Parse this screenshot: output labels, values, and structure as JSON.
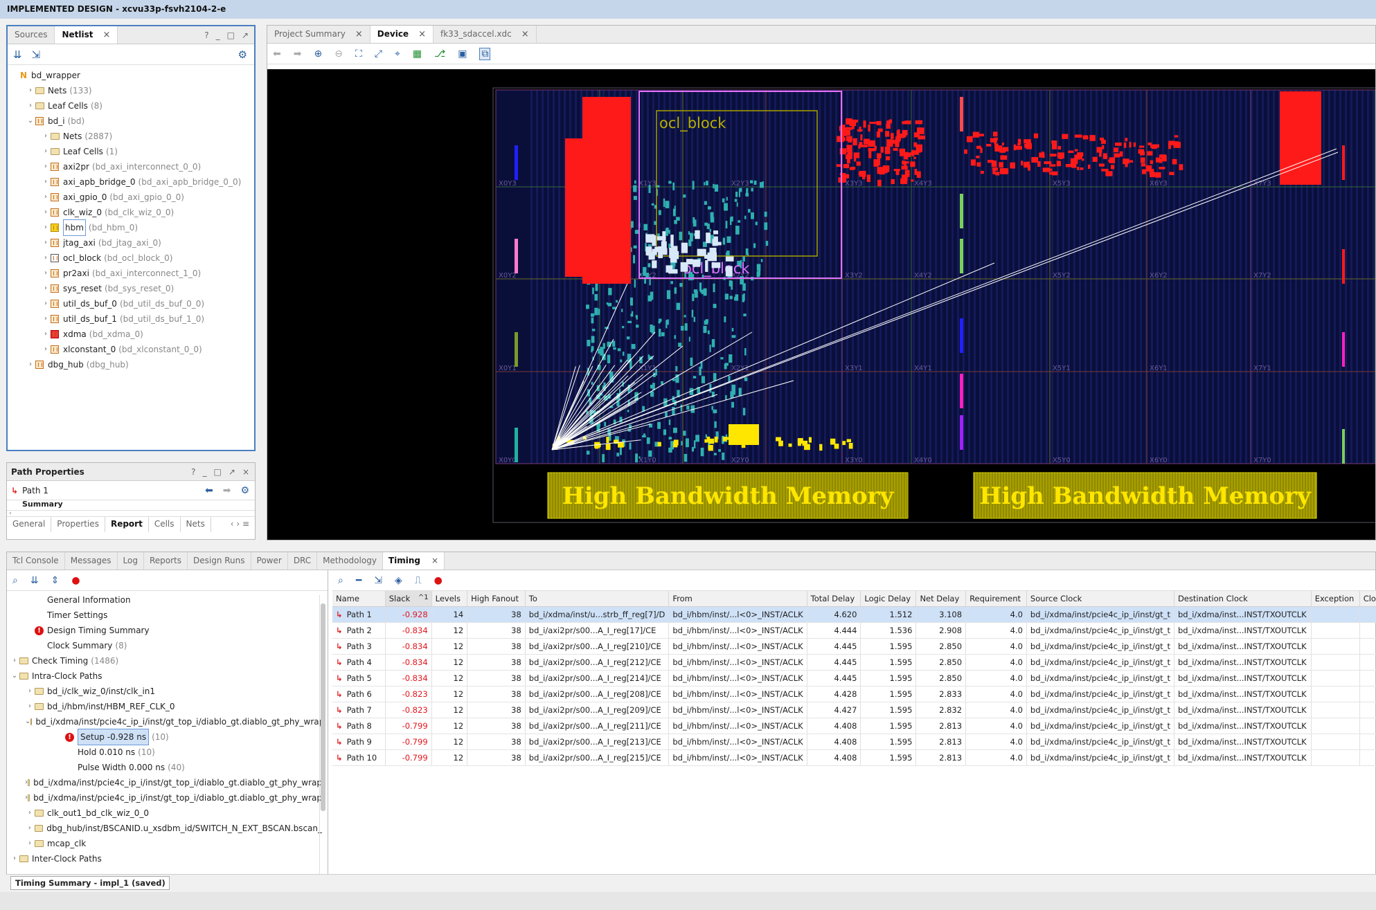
{
  "window": {
    "title": "IMPLEMENTED DESIGN - xcvu33p-fsvh2104-2-e"
  },
  "netlist_panel": {
    "tabs": [
      "Sources",
      "Netlist"
    ],
    "active_tab": "Netlist",
    "header_buttons": [
      "?",
      "_",
      "□",
      "↗"
    ],
    "tree": [
      {
        "label": "bd_wrapper",
        "sub": "",
        "depth": 0,
        "icon": "n",
        "caret": ""
      },
      {
        "label": "Nets",
        "sub": "(133)",
        "depth": 1,
        "icon": "folder",
        "caret": ">"
      },
      {
        "label": "Leaf Cells",
        "sub": "(8)",
        "depth": 1,
        "icon": "folder",
        "caret": ">"
      },
      {
        "label": "bd_i",
        "sub": "(bd)",
        "depth": 1,
        "icon": "cell",
        "caret": "v"
      },
      {
        "label": "Nets",
        "sub": "(2887)",
        "depth": 2,
        "icon": "folder",
        "caret": ">"
      },
      {
        "label": "Leaf Cells",
        "sub": "(1)",
        "depth": 2,
        "icon": "folder",
        "caret": ">"
      },
      {
        "label": "axi2pr",
        "sub": "(bd_axi_interconnect_0_0)",
        "depth": 2,
        "icon": "cell",
        "caret": ">"
      },
      {
        "label": "axi_apb_bridge_0",
        "sub": "(bd_axi_apb_bridge_0_0)",
        "depth": 2,
        "icon": "cell",
        "caret": ">"
      },
      {
        "label": "axi_gpio_0",
        "sub": "(bd_axi_gpio_0_0)",
        "depth": 2,
        "icon": "cell",
        "caret": ">"
      },
      {
        "label": "clk_wiz_0",
        "sub": "(bd_clk_wiz_0_0)",
        "depth": 2,
        "icon": "cell",
        "caret": ">"
      },
      {
        "label": "hbm",
        "sub": "(bd_hbm_0)",
        "depth": 2,
        "icon": "cell-yellow",
        "caret": ">",
        "boxed": true
      },
      {
        "label": "jtag_axi",
        "sub": "(bd_jtag_axi_0)",
        "depth": 2,
        "icon": "cell",
        "caret": ">"
      },
      {
        "label": "ocl_block",
        "sub": "(bd_ocl_block_0)",
        "depth": 2,
        "icon": "cell-check",
        "caret": ">"
      },
      {
        "label": "pr2axi",
        "sub": "(bd_axi_interconnect_1_0)",
        "depth": 2,
        "icon": "cell",
        "caret": ">"
      },
      {
        "label": "sys_reset",
        "sub": "(bd_sys_reset_0)",
        "depth": 2,
        "icon": "cell",
        "caret": ">"
      },
      {
        "label": "util_ds_buf_0",
        "sub": "(bd_util_ds_buf_0_0)",
        "depth": 2,
        "icon": "cell",
        "caret": ">"
      },
      {
        "label": "util_ds_buf_1",
        "sub": "(bd_util_ds_buf_1_0)",
        "depth": 2,
        "icon": "cell",
        "caret": ">"
      },
      {
        "label": "xdma",
        "sub": "(bd_xdma_0)",
        "depth": 2,
        "icon": "cell-red",
        "caret": ">"
      },
      {
        "label": "xlconstant_0",
        "sub": "(bd_xlconstant_0_0)",
        "depth": 2,
        "icon": "cell",
        "caret": ">"
      },
      {
        "label": "dbg_hub",
        "sub": "(dbg_hub)",
        "depth": 1,
        "icon": "cell",
        "caret": ">"
      }
    ]
  },
  "path_properties": {
    "title": "Path Properties",
    "path_label": "Path 1",
    "section": "Summary",
    "tabs": [
      "General",
      "Properties",
      "Report",
      "Cells",
      "Nets"
    ],
    "active_tab": "Report"
  },
  "device_panel": {
    "tabs": [
      "Project Summary",
      "Device",
      "fk33_sdaccel.xdc"
    ],
    "active_tab": "Device",
    "pblock_labels": [
      "ocl_block",
      "ocl_block"
    ],
    "hbm_labels": [
      "High Bandwidth Memory",
      "High Bandwidth Memory"
    ],
    "clock_regions": [
      "X0Y3",
      "X1Y3",
      "X2Y3",
      "X3Y3",
      "X4Y3",
      "X5Y3",
      "X6Y3",
      "X7Y3",
      "X0Y2",
      "X1Y2",
      "X2Y2",
      "X3Y2",
      "X4Y2",
      "X5Y2",
      "X6Y2",
      "X7Y2",
      "X0Y1",
      "X1Y1",
      "X2Y1",
      "X3Y1",
      "X4Y1",
      "X5Y1",
      "X6Y1",
      "X7Y1",
      "X0Y0",
      "X1Y0",
      "X2Y0",
      "X3Y0",
      "X4Y0",
      "X5Y0",
      "X6Y0",
      "X7Y0"
    ]
  },
  "bottom_tabs": [
    "Tcl Console",
    "Messages",
    "Log",
    "Reports",
    "Design Runs",
    "Power",
    "DRC",
    "Methodology",
    "Timing"
  ],
  "bottom_active": "Timing",
  "timing_tree": [
    {
      "label": "General Information",
      "sub": "",
      "depth": 1,
      "icon": "",
      "caret": ""
    },
    {
      "label": "Timer Settings",
      "sub": "",
      "depth": 1,
      "icon": "",
      "caret": ""
    },
    {
      "label": "Design Timing Summary",
      "sub": "",
      "depth": 1,
      "icon": "err",
      "caret": ""
    },
    {
      "label": "Clock Summary",
      "sub": "(8)",
      "depth": 1,
      "icon": "",
      "caret": ""
    },
    {
      "label": "Check Timing",
      "sub": "(1486)",
      "depth": 0,
      "icon": "folder",
      "caret": ">"
    },
    {
      "label": "Intra-Clock Paths",
      "sub": "",
      "depth": 0,
      "icon": "folder",
      "caret": "v"
    },
    {
      "label": "bd_i/clk_wiz_0/inst/clk_in1",
      "sub": "",
      "depth": 1,
      "icon": "folder",
      "caret": ">"
    },
    {
      "label": "bd_i/hbm/inst/HBM_REF_CLK_0",
      "sub": "",
      "depth": 1,
      "icon": "folder",
      "caret": ">"
    },
    {
      "label": "bd_i/xdma/inst/pcie4c_ip_i/inst/gt_top_i/diablo_gt.diablo_gt_phy_wrap",
      "sub": "",
      "depth": 1,
      "icon": "folder",
      "caret": "v"
    },
    {
      "label": "Setup -0.928 ns",
      "sub": "(10)",
      "depth": 3,
      "icon": "err",
      "caret": "",
      "boxed": true
    },
    {
      "label": "Hold 0.010 ns",
      "sub": "(10)",
      "depth": 3,
      "icon": "",
      "caret": ""
    },
    {
      "label": "Pulse Width 0.000 ns",
      "sub": "(40)",
      "depth": 3,
      "icon": "",
      "caret": ""
    },
    {
      "label": "bd_i/xdma/inst/pcie4c_ip_i/inst/gt_top_i/diablo_gt.diablo_gt_phy_wrap",
      "sub": "",
      "depth": 1,
      "icon": "folder",
      "caret": ">"
    },
    {
      "label": "bd_i/xdma/inst/pcie4c_ip_i/inst/gt_top_i/diablo_gt.diablo_gt_phy_wrap",
      "sub": "",
      "depth": 1,
      "icon": "folder",
      "caret": ">"
    },
    {
      "label": "clk_out1_bd_clk_wiz_0_0",
      "sub": "",
      "depth": 1,
      "icon": "folder",
      "caret": ">"
    },
    {
      "label": "dbg_hub/inst/BSCANID.u_xsdbm_id/SWITCH_N_EXT_BSCAN.bscan_",
      "sub": "",
      "depth": 1,
      "icon": "folder",
      "caret": ">"
    },
    {
      "label": "mcap_clk",
      "sub": "",
      "depth": 1,
      "icon": "folder",
      "caret": ">"
    },
    {
      "label": "Inter-Clock Paths",
      "sub": "",
      "depth": 0,
      "icon": "folder",
      "caret": ">"
    }
  ],
  "timing_table": {
    "columns": [
      "Name",
      "Slack",
      "Levels",
      "High Fanout",
      "To",
      "From",
      "Total Delay",
      "Logic Delay",
      "Net Delay",
      "Requirement",
      "Source Clock",
      "Destination Clock",
      "Exception",
      "Clo"
    ],
    "sort_indicator": "^1",
    "rows": [
      [
        "Path 1",
        "-0.928",
        "14",
        "38",
        "bd_i/xdma/inst/u...strb_ff_reg[7]/D",
        "bd_i/hbm/inst/...l<0>_INST/ACLK",
        "4.620",
        "1.512",
        "3.108",
        "4.0",
        "bd_i/xdma/inst/pcie4c_ip_i/inst/gt_t",
        "bd_i/xdma/inst...INST/TXOUTCLK"
      ],
      [
        "Path 2",
        "-0.834",
        "12",
        "38",
        "bd_i/axi2pr/s00...A_I_reg[17]/CE",
        "bd_i/hbm/inst/...l<0>_INST/ACLK",
        "4.444",
        "1.536",
        "2.908",
        "4.0",
        "bd_i/xdma/inst/pcie4c_ip_i/inst/gt_t",
        "bd_i/xdma/inst...INST/TXOUTCLK"
      ],
      [
        "Path 3",
        "-0.834",
        "12",
        "38",
        "bd_i/axi2pr/s00...A_I_reg[210]/CE",
        "bd_i/hbm/inst/...l<0>_INST/ACLK",
        "4.445",
        "1.595",
        "2.850",
        "4.0",
        "bd_i/xdma/inst/pcie4c_ip_i/inst/gt_t",
        "bd_i/xdma/inst...INST/TXOUTCLK"
      ],
      [
        "Path 4",
        "-0.834",
        "12",
        "38",
        "bd_i/axi2pr/s00...A_I_reg[212]/CE",
        "bd_i/hbm/inst/...l<0>_INST/ACLK",
        "4.445",
        "1.595",
        "2.850",
        "4.0",
        "bd_i/xdma/inst/pcie4c_ip_i/inst/gt_t",
        "bd_i/xdma/inst...INST/TXOUTCLK"
      ],
      [
        "Path 5",
        "-0.834",
        "12",
        "38",
        "bd_i/axi2pr/s00...A_I_reg[214]/CE",
        "bd_i/hbm/inst/...l<0>_INST/ACLK",
        "4.445",
        "1.595",
        "2.850",
        "4.0",
        "bd_i/xdma/inst/pcie4c_ip_i/inst/gt_t",
        "bd_i/xdma/inst...INST/TXOUTCLK"
      ],
      [
        "Path 6",
        "-0.823",
        "12",
        "38",
        "bd_i/axi2pr/s00...A_I_reg[208]/CE",
        "bd_i/hbm/inst/...l<0>_INST/ACLK",
        "4.428",
        "1.595",
        "2.833",
        "4.0",
        "bd_i/xdma/inst/pcie4c_ip_i/inst/gt_t",
        "bd_i/xdma/inst...INST/TXOUTCLK"
      ],
      [
        "Path 7",
        "-0.823",
        "12",
        "38",
        "bd_i/axi2pr/s00...A_I_reg[209]/CE",
        "bd_i/hbm/inst/...l<0>_INST/ACLK",
        "4.427",
        "1.595",
        "2.832",
        "4.0",
        "bd_i/xdma/inst/pcie4c_ip_i/inst/gt_t",
        "bd_i/xdma/inst...INST/TXOUTCLK"
      ],
      [
        "Path 8",
        "-0.799",
        "12",
        "38",
        "bd_i/axi2pr/s00...A_I_reg[211]/CE",
        "bd_i/hbm/inst/...l<0>_INST/ACLK",
        "4.408",
        "1.595",
        "2.813",
        "4.0",
        "bd_i/xdma/inst/pcie4c_ip_i/inst/gt_t",
        "bd_i/xdma/inst...INST/TXOUTCLK"
      ],
      [
        "Path 9",
        "-0.799",
        "12",
        "38",
        "bd_i/axi2pr/s00...A_I_reg[213]/CE",
        "bd_i/hbm/inst/...l<0>_INST/ACLK",
        "4.408",
        "1.595",
        "2.813",
        "4.0",
        "bd_i/xdma/inst/pcie4c_ip_i/inst/gt_t",
        "bd_i/xdma/inst...INST/TXOUTCLK"
      ],
      [
        "Path 10",
        "-0.799",
        "12",
        "38",
        "bd_i/axi2pr/s00...A_I_reg[215]/CE",
        "bd_i/hbm/inst/...l<0>_INST/ACLK",
        "4.408",
        "1.595",
        "2.813",
        "4.0",
        "bd_i/xdma/inst/pcie4c_ip_i/inst/gt_t",
        "bd_i/xdma/inst...INST/TXOUTCLK"
      ]
    ]
  },
  "status": {
    "timing_summary": "Timing Summary - impl_1 (saved)"
  },
  "colors": {
    "title_bg": "#c6d6ea",
    "selected_row": "#cfe1f7",
    "negative_slack": "#e0161c",
    "device_bg": "#000000",
    "hbm_fill": "#a8a000",
    "hbm_text": "#ffe600",
    "pblock_border": "#e070ff"
  }
}
